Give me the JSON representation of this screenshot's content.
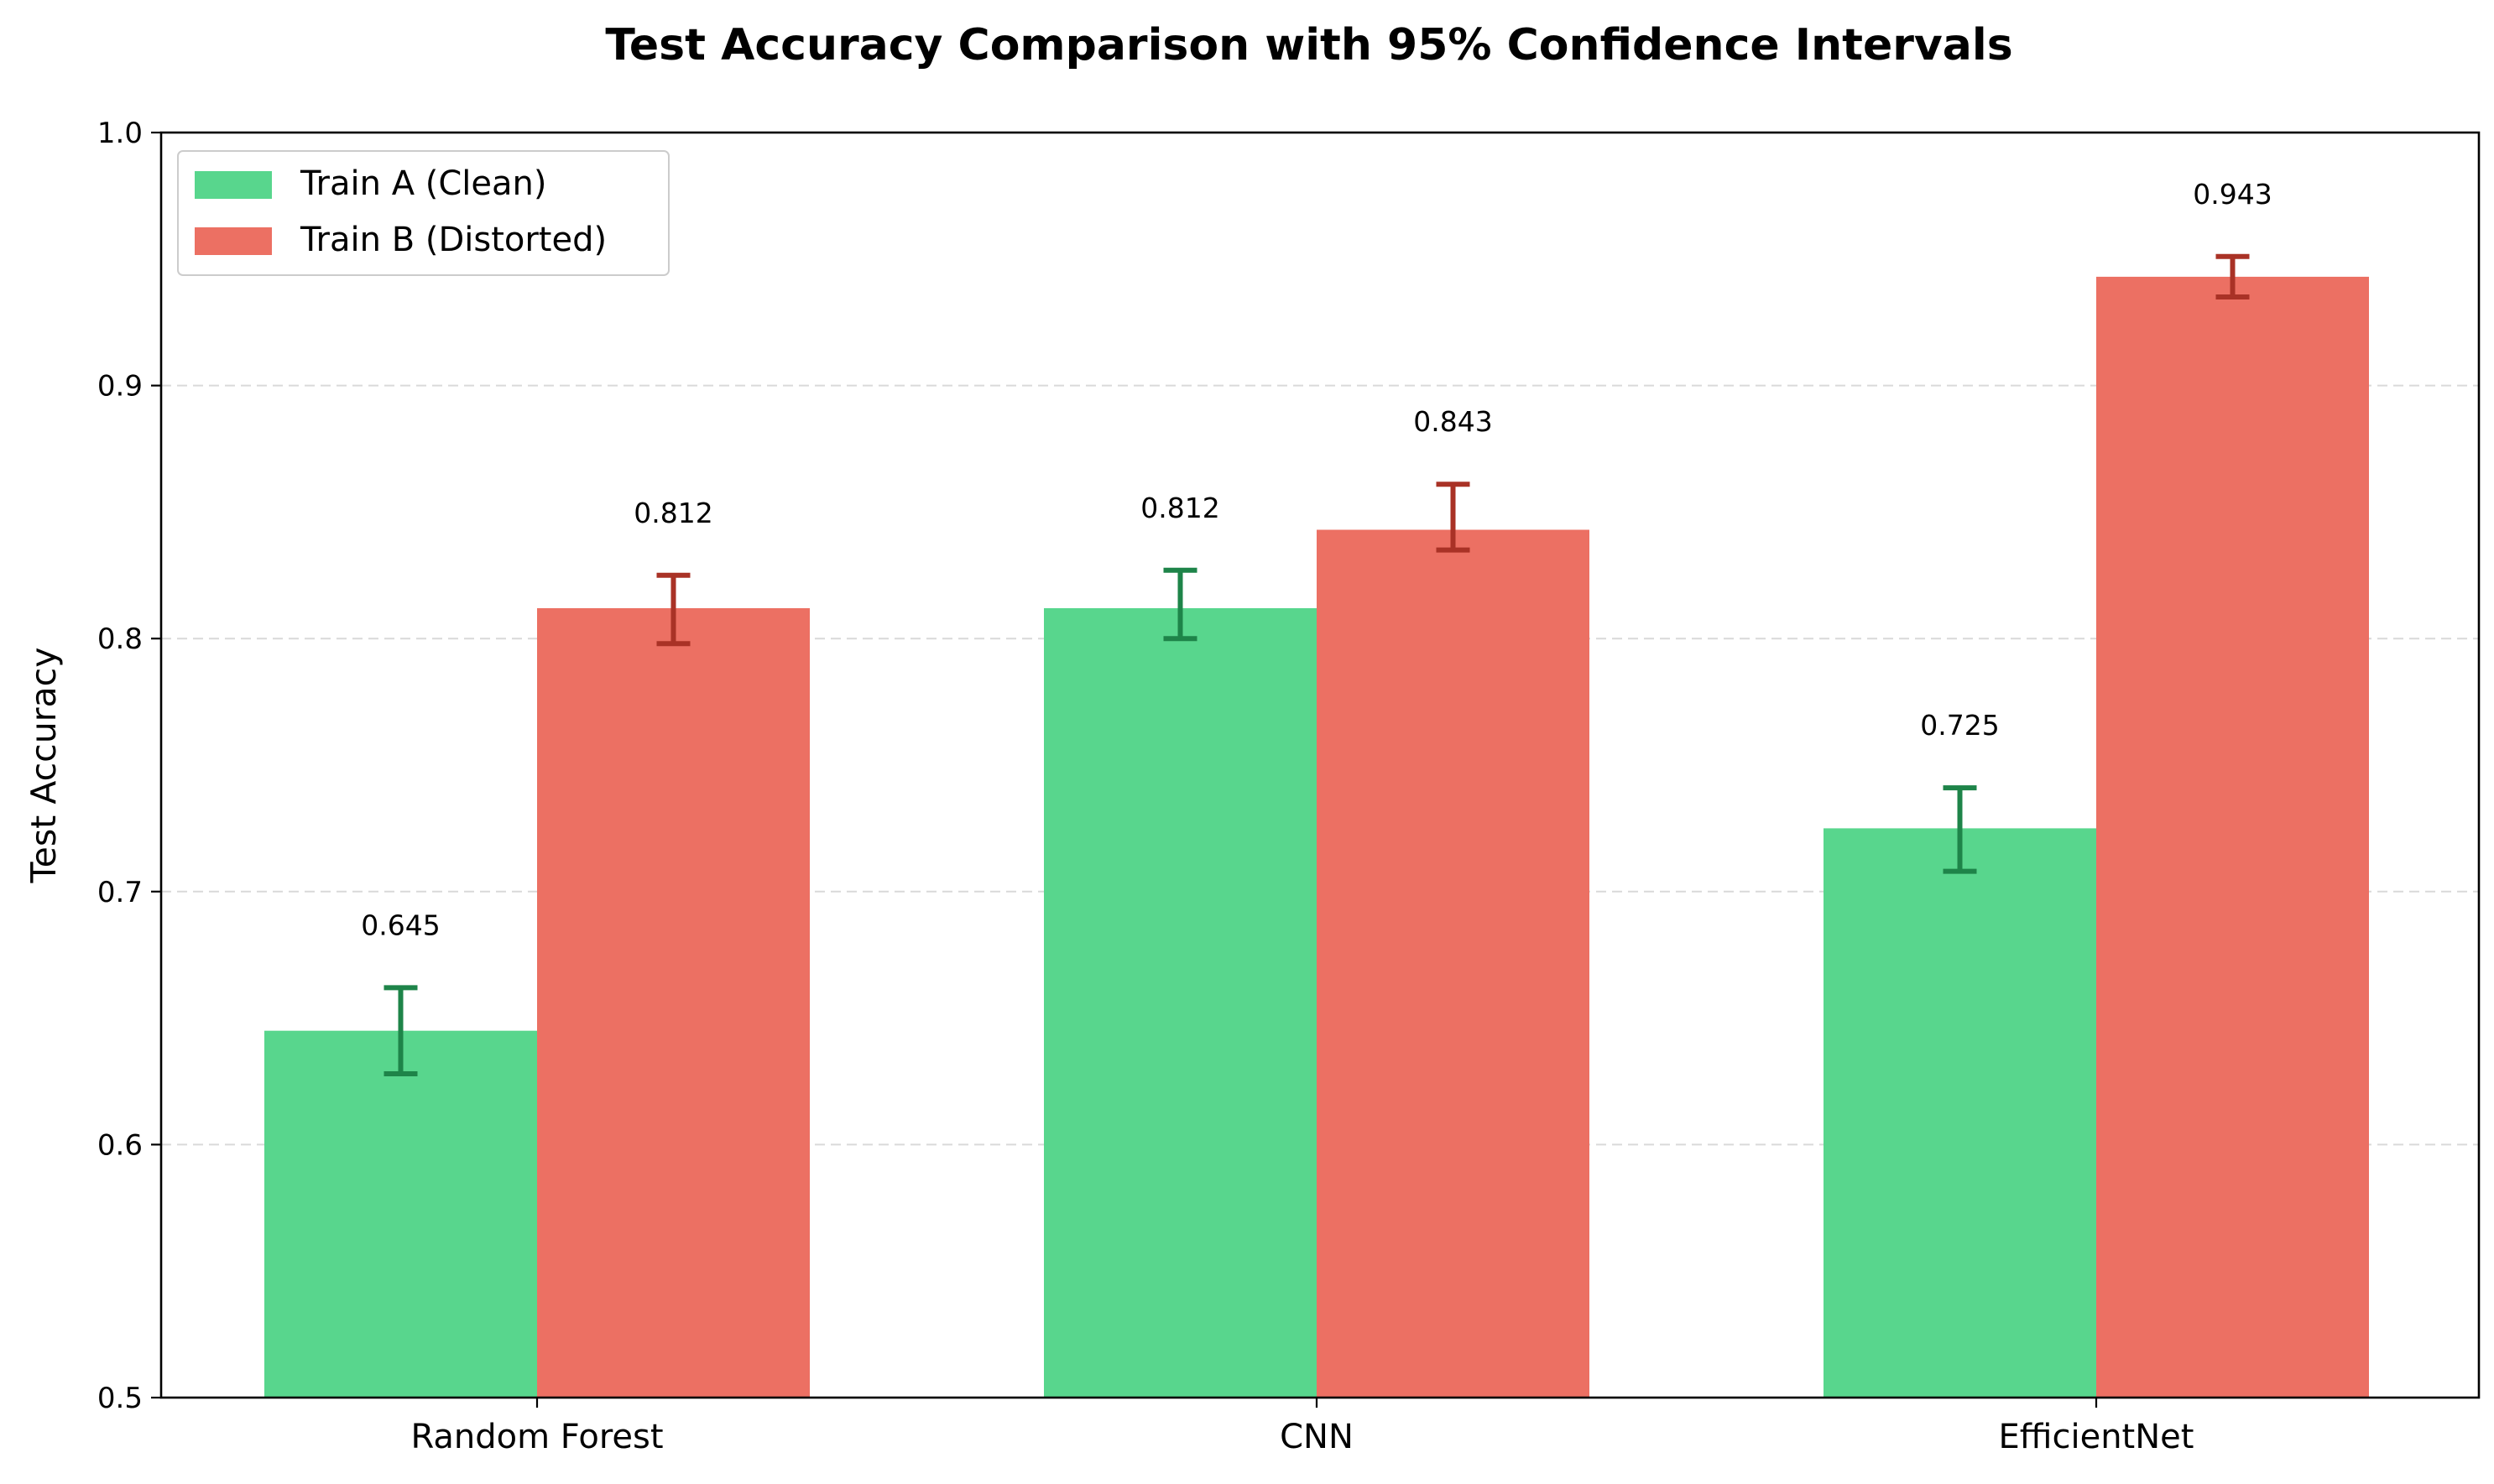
{
  "chart_data": {
    "type": "bar",
    "title": "Test Accuracy Comparison with 95% Confidence Intervals",
    "xlabel": "",
    "ylabel": "Test Accuracy",
    "ylim": [
      0.5,
      1.0
    ],
    "yticks": [
      0.5,
      0.6,
      0.7,
      0.8,
      0.9,
      1.0
    ],
    "ytick_labels": [
      "0.5",
      "0.6",
      "0.7",
      "0.8",
      "0.9",
      "1.0"
    ],
    "grid": "y-dashed",
    "legend_position": "top-left",
    "categories": [
      "Random Forest",
      "CNN",
      "EfficientNet"
    ],
    "series": [
      {
        "name": "Train A (Clean)",
        "color": "#58d68d",
        "error_color": "#1e8449",
        "values": [
          0.645,
          0.812,
          0.725
        ],
        "value_labels": [
          "0.645",
          "0.812",
          "0.725"
        ],
        "ci_low": [
          0.628,
          0.8,
          0.708
        ],
        "ci_high": [
          0.662,
          0.827,
          0.741
        ]
      },
      {
        "name": "Train B (Distorted)",
        "color": "#ec7063",
        "error_color": "#a93226",
        "values": [
          0.812,
          0.843,
          0.943
        ],
        "value_labels": [
          "0.812",
          "0.843",
          "0.943"
        ],
        "ci_low": [
          0.798,
          0.835,
          0.935
        ],
        "ci_high": [
          0.825,
          0.861,
          0.951
        ]
      }
    ]
  }
}
